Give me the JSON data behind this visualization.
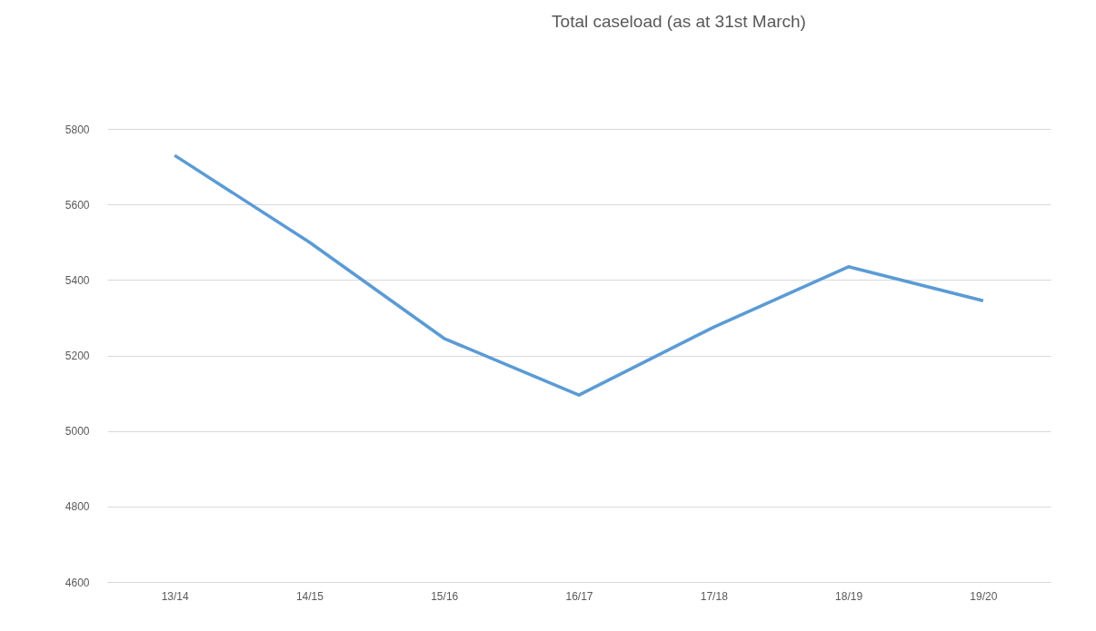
{
  "chart_data": {
    "type": "line",
    "title": "Total caseload (as at 31st March)",
    "categories": [
      "13/14",
      "14/15",
      "15/16",
      "16/17",
      "17/18",
      "18/19",
      "19/20"
    ],
    "series": [
      {
        "color": "#5b9bd5",
        "values": [
          5730,
          5500,
          5245,
          5095,
          5275,
          5435,
          5345
        ]
      }
    ],
    "ylim": [
      4600,
      5800
    ],
    "yticks": [
      4600,
      4800,
      5000,
      5200,
      5400,
      5600,
      5800
    ],
    "grid": "y",
    "marker": "none",
    "line_style": "solid",
    "legend": false
  }
}
